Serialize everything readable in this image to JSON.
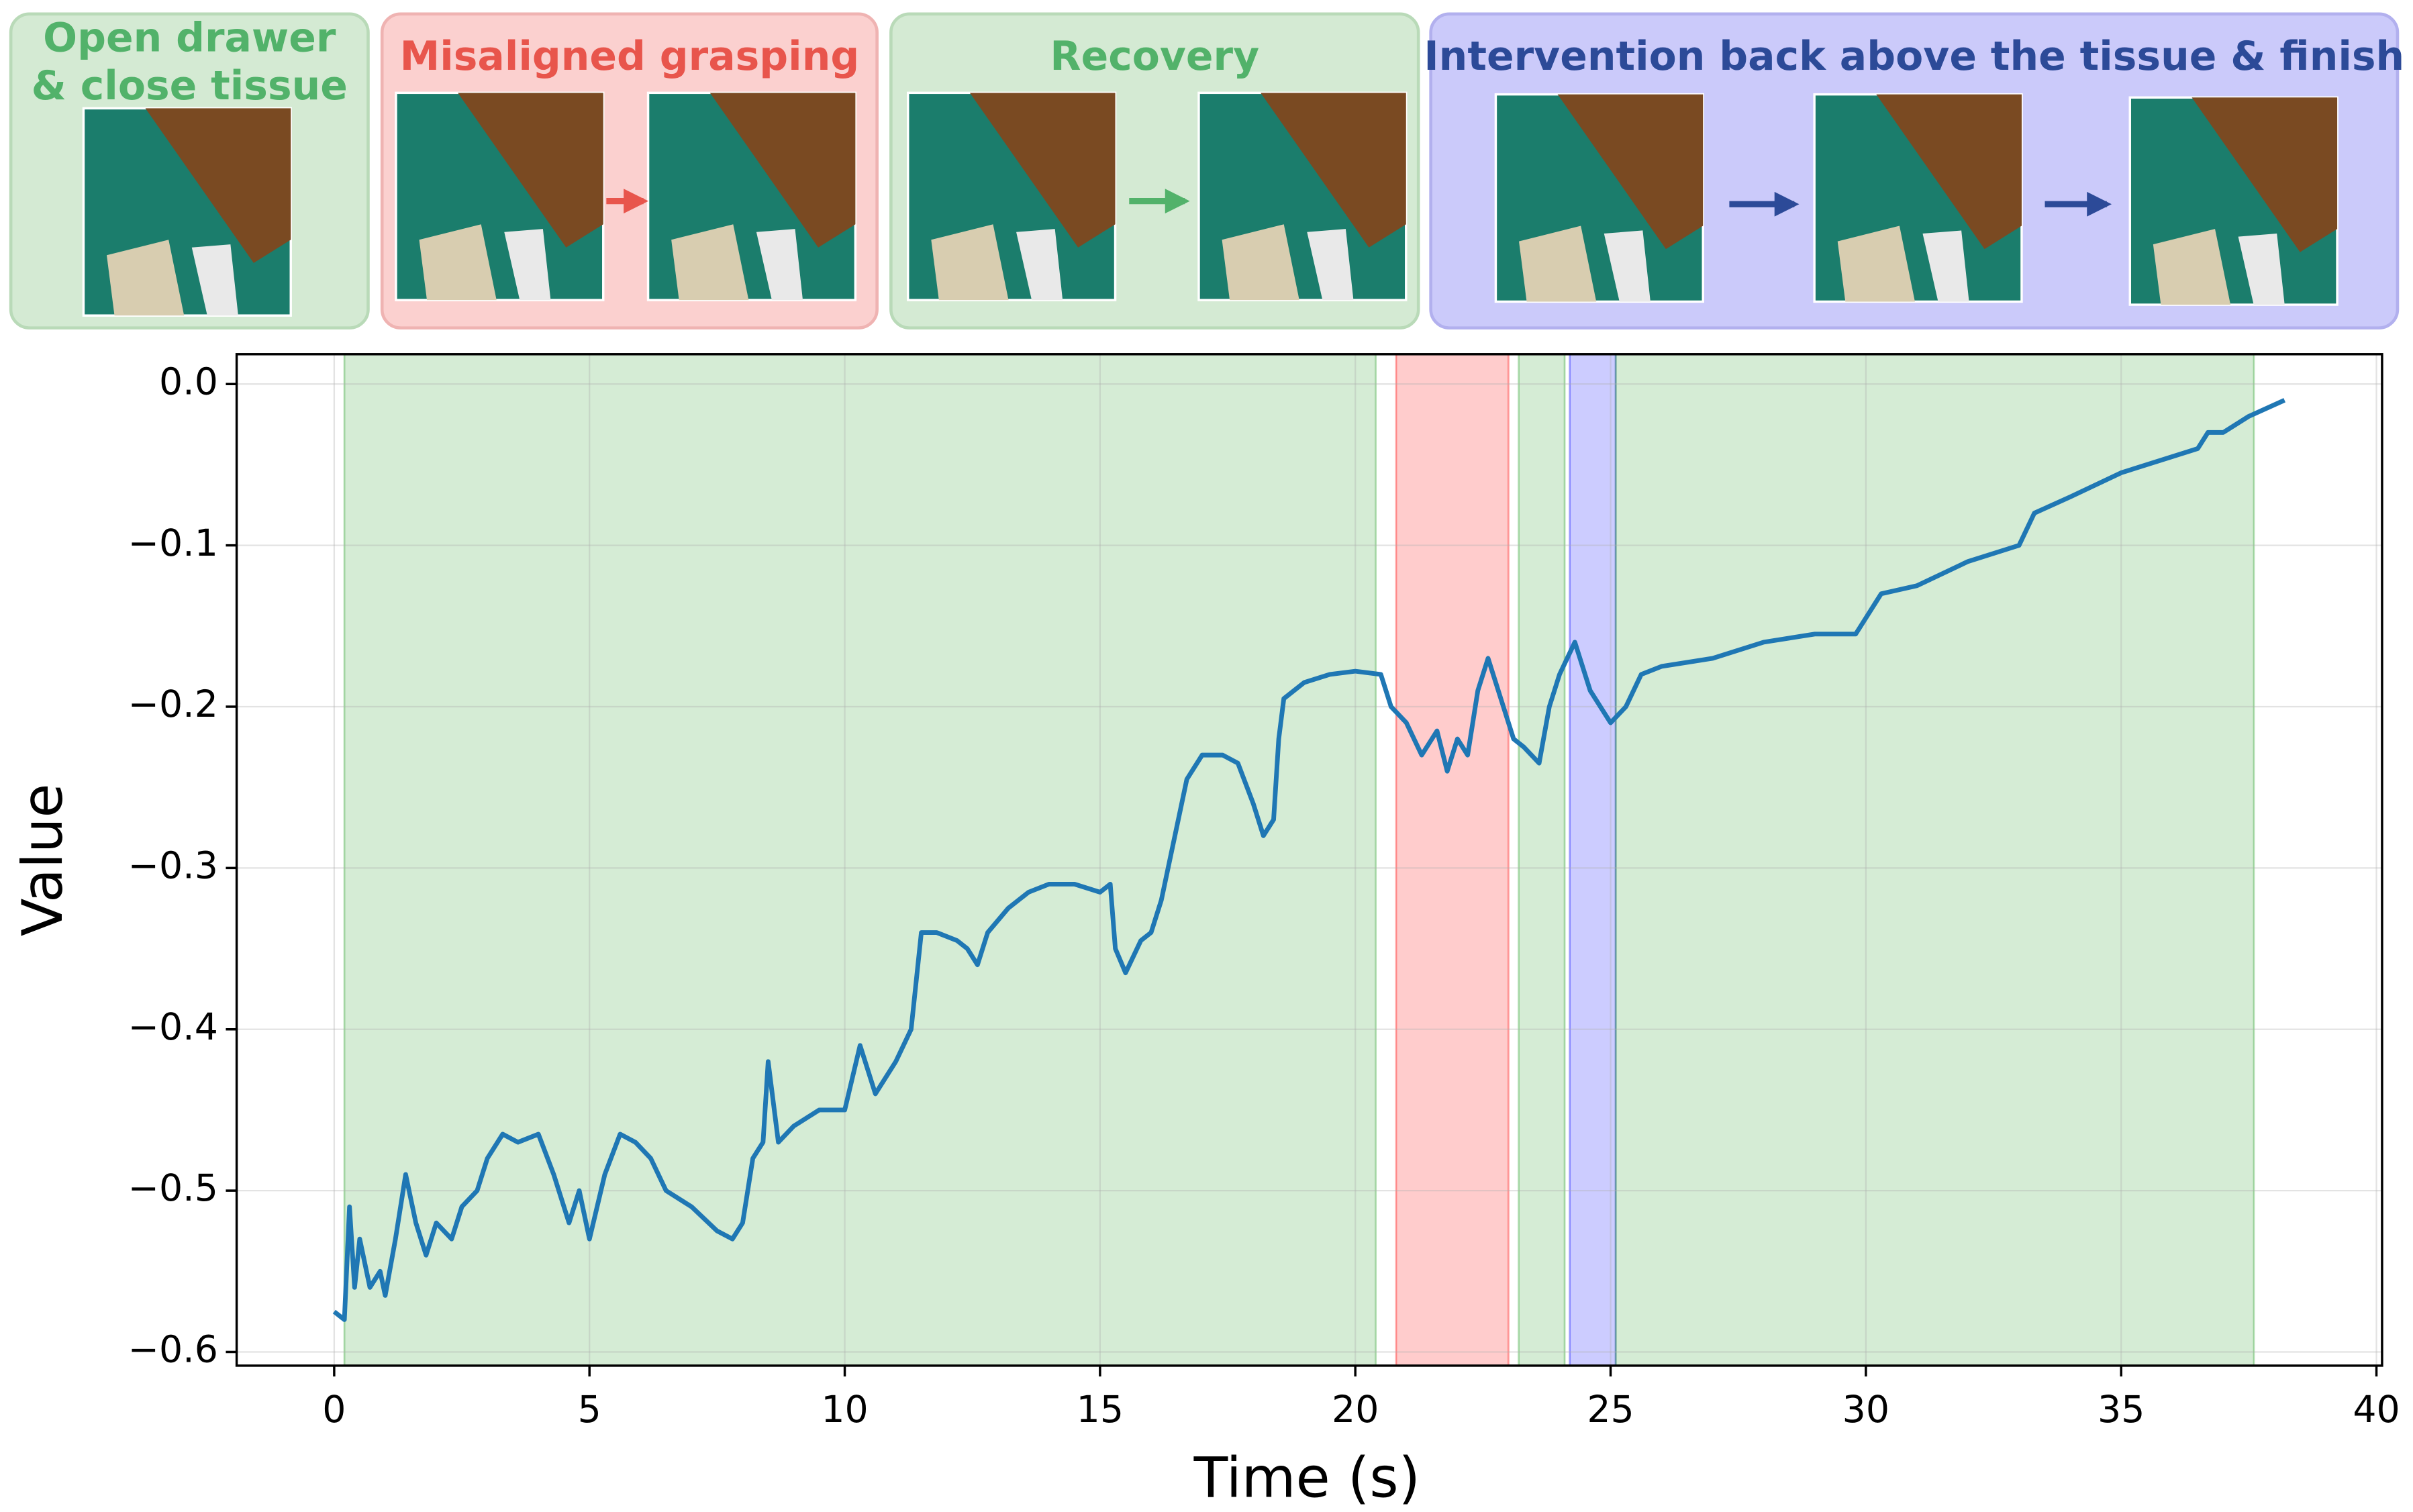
{
  "panels": [
    {
      "title": [
        "Open drawer",
        "& close tissue"
      ],
      "text_color": "#52b26a",
      "background": "#d4ead3",
      "border": "#b9dab8"
    },
    {
      "title": [
        "Misaligned grasping"
      ],
      "text_color": "#e8554c",
      "background": "#fbd0cf",
      "border": "#efb3b2"
    },
    {
      "title": [
        "Recovery"
      ],
      "text_color": "#52b26a",
      "background": "#d4ead3",
      "border": "#b9dab8"
    },
    {
      "title": [
        "Intervention back above the tissue & finish"
      ],
      "text_color": "#2c4a98",
      "background": "#cbcafa",
      "border": "#b2b0ee"
    }
  ],
  "chart_data": {
    "type": "line",
    "xlabel": "Time (s)",
    "ylabel": "Value",
    "color": "#1f77b4",
    "grid": true,
    "xlim": [
      -1.91,
      40.11
    ],
    "ylim": [
      -0.6085,
      0.0185
    ],
    "xticks": [
      0,
      5,
      10,
      15,
      20,
      25,
      30,
      35,
      40
    ],
    "yticks": [
      {
        "value": -0.6,
        "label": "−0.6"
      },
      {
        "value": -0.5,
        "label": "−0.5"
      },
      {
        "value": -0.4,
        "label": "−0.4"
      },
      {
        "value": -0.3,
        "label": "−0.3"
      },
      {
        "value": -0.2,
        "label": "−0.2"
      },
      {
        "value": -0.1,
        "label": "−0.1"
      },
      {
        "value": 0,
        "label": "0.0"
      }
    ],
    "spans": [
      {
        "start": 0.2,
        "end": 20.4,
        "color": "#2ca02c"
      },
      {
        "start": 20.8,
        "end": 23.0,
        "color": "#ff0000"
      },
      {
        "start": 23.2,
        "end": 24.1,
        "color": "#2ca02c"
      },
      {
        "start": 24.2,
        "end": 25.1,
        "color": "#0000ff"
      },
      {
        "start": 25.1,
        "end": 37.6,
        "color": "#2ca02c"
      }
    ],
    "x": [
      0,
      0.2,
      0.3,
      0.4,
      0.5,
      0.7,
      0.9,
      1.0,
      1.2,
      1.4,
      1.6,
      1.8,
      2.0,
      2.3,
      2.5,
      2.8,
      3.0,
      3.3,
      3.6,
      4.0,
      4.3,
      4.6,
      4.8,
      5.0,
      5.3,
      5.6,
      5.9,
      6.2,
      6.5,
      7.0,
      7.5,
      7.8,
      8.0,
      8.2,
      8.4,
      8.5,
      8.7,
      9.0,
      9.5,
      10.0,
      10.3,
      10.6,
      11.0,
      11.3,
      11.5,
      11.8,
      12.2,
      12.4,
      12.6,
      12.8,
      13.2,
      13.6,
      14.0,
      14.5,
      15.0,
      15.2,
      15.3,
      15.5,
      15.8,
      16.0,
      16.2,
      16.4,
      16.7,
      17.0,
      17.4,
      17.7,
      18.0,
      18.2,
      18.4,
      18.5,
      18.6,
      19.0,
      19.5,
      20.0,
      20.5,
      20.7,
      21.0,
      21.3,
      21.6,
      21.8,
      22.0,
      22.2,
      22.4,
      22.6,
      22.9,
      23.1,
      23.3,
      23.6,
      23.8,
      24.0,
      24.3,
      24.6,
      25.0,
      25.3,
      25.6,
      26.0,
      27.0,
      28.0,
      29.0,
      29.8,
      30.0,
      30.3,
      31.0,
      32.0,
      33.0,
      33.3,
      34.0,
      35.0,
      36.0,
      36.5,
      36.7,
      37.0,
      37.5,
      38.2
    ],
    "values": [
      -0.575,
      -0.58,
      -0.51,
      -0.56,
      -0.53,
      -0.56,
      -0.55,
      -0.565,
      -0.53,
      -0.49,
      -0.52,
      -0.54,
      -0.52,
      -0.53,
      -0.51,
      -0.5,
      -0.48,
      -0.465,
      -0.47,
      -0.465,
      -0.49,
      -0.52,
      -0.5,
      -0.53,
      -0.49,
      -0.465,
      -0.47,
      -0.48,
      -0.5,
      -0.51,
      -0.525,
      -0.53,
      -0.52,
      -0.48,
      -0.47,
      -0.42,
      -0.47,
      -0.46,
      -0.45,
      -0.45,
      -0.41,
      -0.44,
      -0.42,
      -0.4,
      -0.34,
      -0.34,
      -0.345,
      -0.35,
      -0.36,
      -0.34,
      -0.325,
      -0.315,
      -0.31,
      -0.31,
      -0.315,
      -0.31,
      -0.35,
      -0.365,
      -0.345,
      -0.34,
      -0.32,
      -0.29,
      -0.245,
      -0.23,
      -0.23,
      -0.235,
      -0.26,
      -0.28,
      -0.27,
      -0.22,
      -0.195,
      -0.185,
      -0.18,
      -0.178,
      -0.18,
      -0.2,
      -0.21,
      -0.23,
      -0.215,
      -0.24,
      -0.22,
      -0.23,
      -0.19,
      -0.17,
      -0.2,
      -0.22,
      -0.225,
      -0.235,
      -0.2,
      -0.18,
      -0.16,
      -0.19,
      -0.21,
      -0.2,
      -0.18,
      -0.175,
      -0.17,
      -0.16,
      -0.155,
      -0.155,
      -0.145,
      -0.13,
      -0.125,
      -0.11,
      -0.1,
      -0.08,
      -0.07,
      -0.055,
      -0.045,
      -0.04,
      -0.03,
      -0.03,
      -0.02,
      -0.01
    ]
  }
}
